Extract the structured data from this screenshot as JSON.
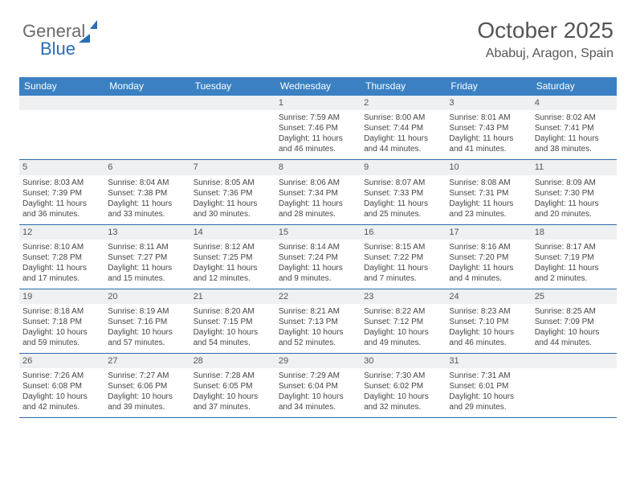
{
  "logo": {
    "text1": "General",
    "text2": "Blue"
  },
  "title": "October 2025",
  "location": "Ababuj, Aragon, Spain",
  "colors": {
    "header_bg": "#3a80c2",
    "row_border": "#2e6aa8",
    "daynum_bg": "#eef0f1",
    "logo_gray": "#6b6b6b",
    "logo_blue": "#2a6db8"
  },
  "day_headers": [
    "Sunday",
    "Monday",
    "Tuesday",
    "Wednesday",
    "Thursday",
    "Friday",
    "Saturday"
  ],
  "weeks": [
    [
      {
        "n": "",
        "sr": "",
        "ss": "",
        "dl": ""
      },
      {
        "n": "",
        "sr": "",
        "ss": "",
        "dl": ""
      },
      {
        "n": "",
        "sr": "",
        "ss": "",
        "dl": ""
      },
      {
        "n": "1",
        "sr": "7:59 AM",
        "ss": "7:46 PM",
        "dl": "11 hours and 46 minutes."
      },
      {
        "n": "2",
        "sr": "8:00 AM",
        "ss": "7:44 PM",
        "dl": "11 hours and 44 minutes."
      },
      {
        "n": "3",
        "sr": "8:01 AM",
        "ss": "7:43 PM",
        "dl": "11 hours and 41 minutes."
      },
      {
        "n": "4",
        "sr": "8:02 AM",
        "ss": "7:41 PM",
        "dl": "11 hours and 38 minutes."
      }
    ],
    [
      {
        "n": "5",
        "sr": "8:03 AM",
        "ss": "7:39 PM",
        "dl": "11 hours and 36 minutes."
      },
      {
        "n": "6",
        "sr": "8:04 AM",
        "ss": "7:38 PM",
        "dl": "11 hours and 33 minutes."
      },
      {
        "n": "7",
        "sr": "8:05 AM",
        "ss": "7:36 PM",
        "dl": "11 hours and 30 minutes."
      },
      {
        "n": "8",
        "sr": "8:06 AM",
        "ss": "7:34 PM",
        "dl": "11 hours and 28 minutes."
      },
      {
        "n": "9",
        "sr": "8:07 AM",
        "ss": "7:33 PM",
        "dl": "11 hours and 25 minutes."
      },
      {
        "n": "10",
        "sr": "8:08 AM",
        "ss": "7:31 PM",
        "dl": "11 hours and 23 minutes."
      },
      {
        "n": "11",
        "sr": "8:09 AM",
        "ss": "7:30 PM",
        "dl": "11 hours and 20 minutes."
      }
    ],
    [
      {
        "n": "12",
        "sr": "8:10 AM",
        "ss": "7:28 PM",
        "dl": "11 hours and 17 minutes."
      },
      {
        "n": "13",
        "sr": "8:11 AM",
        "ss": "7:27 PM",
        "dl": "11 hours and 15 minutes."
      },
      {
        "n": "14",
        "sr": "8:12 AM",
        "ss": "7:25 PM",
        "dl": "11 hours and 12 minutes."
      },
      {
        "n": "15",
        "sr": "8:14 AM",
        "ss": "7:24 PM",
        "dl": "11 hours and 9 minutes."
      },
      {
        "n": "16",
        "sr": "8:15 AM",
        "ss": "7:22 PM",
        "dl": "11 hours and 7 minutes."
      },
      {
        "n": "17",
        "sr": "8:16 AM",
        "ss": "7:20 PM",
        "dl": "11 hours and 4 minutes."
      },
      {
        "n": "18",
        "sr": "8:17 AM",
        "ss": "7:19 PM",
        "dl": "11 hours and 2 minutes."
      }
    ],
    [
      {
        "n": "19",
        "sr": "8:18 AM",
        "ss": "7:18 PM",
        "dl": "10 hours and 59 minutes."
      },
      {
        "n": "20",
        "sr": "8:19 AM",
        "ss": "7:16 PM",
        "dl": "10 hours and 57 minutes."
      },
      {
        "n": "21",
        "sr": "8:20 AM",
        "ss": "7:15 PM",
        "dl": "10 hours and 54 minutes."
      },
      {
        "n": "22",
        "sr": "8:21 AM",
        "ss": "7:13 PM",
        "dl": "10 hours and 52 minutes."
      },
      {
        "n": "23",
        "sr": "8:22 AM",
        "ss": "7:12 PM",
        "dl": "10 hours and 49 minutes."
      },
      {
        "n": "24",
        "sr": "8:23 AM",
        "ss": "7:10 PM",
        "dl": "10 hours and 46 minutes."
      },
      {
        "n": "25",
        "sr": "8:25 AM",
        "ss": "7:09 PM",
        "dl": "10 hours and 44 minutes."
      }
    ],
    [
      {
        "n": "26",
        "sr": "7:26 AM",
        "ss": "6:08 PM",
        "dl": "10 hours and 42 minutes."
      },
      {
        "n": "27",
        "sr": "7:27 AM",
        "ss": "6:06 PM",
        "dl": "10 hours and 39 minutes."
      },
      {
        "n": "28",
        "sr": "7:28 AM",
        "ss": "6:05 PM",
        "dl": "10 hours and 37 minutes."
      },
      {
        "n": "29",
        "sr": "7:29 AM",
        "ss": "6:04 PM",
        "dl": "10 hours and 34 minutes."
      },
      {
        "n": "30",
        "sr": "7:30 AM",
        "ss": "6:02 PM",
        "dl": "10 hours and 32 minutes."
      },
      {
        "n": "31",
        "sr": "7:31 AM",
        "ss": "6:01 PM",
        "dl": "10 hours and 29 minutes."
      },
      {
        "n": "",
        "sr": "",
        "ss": "",
        "dl": ""
      }
    ]
  ],
  "labels": {
    "sunrise_prefix": "Sunrise: ",
    "sunset_prefix": "Sunset: ",
    "daylight_prefix": "Daylight: "
  }
}
